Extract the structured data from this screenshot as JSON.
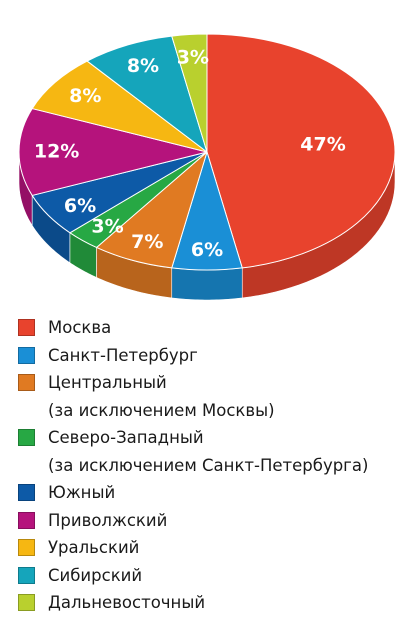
{
  "chart_data": {
    "type": "pie",
    "style": "3d",
    "values": [
      47,
      6,
      7,
      3,
      6,
      12,
      8,
      8,
      3
    ],
    "labels": [
      "47%",
      "6%",
      "7%",
      "3%",
      "6%",
      "12%",
      "8%",
      "8%",
      "3%"
    ],
    "legend": [
      {
        "lines": [
          "Москва"
        ],
        "color": "#e8432d"
      },
      {
        "lines": [
          "Санкт-Петербург"
        ],
        "color": "#1a8fd6"
      },
      {
        "lines": [
          "Центральный",
          "(за исключением Москвы)"
        ],
        "color": "#e07a22"
      },
      {
        "lines": [
          "Северо-Западный",
          "(за исключением Санкт-Петербурга)"
        ],
        "color": "#27a844"
      },
      {
        "lines": [
          "Южный"
        ],
        "color": "#0d5aa7"
      },
      {
        "lines": [
          "Приволжский"
        ],
        "color": "#b5137c"
      },
      {
        "lines": [
          "Уральский"
        ],
        "color": "#f6b712"
      },
      {
        "lines": [
          "Сибирский"
        ],
        "color": "#15a5bb"
      },
      {
        "lines": [
          "Дальневосточный"
        ],
        "color": "#b9d02e"
      }
    ],
    "legend_position": "bottom"
  }
}
